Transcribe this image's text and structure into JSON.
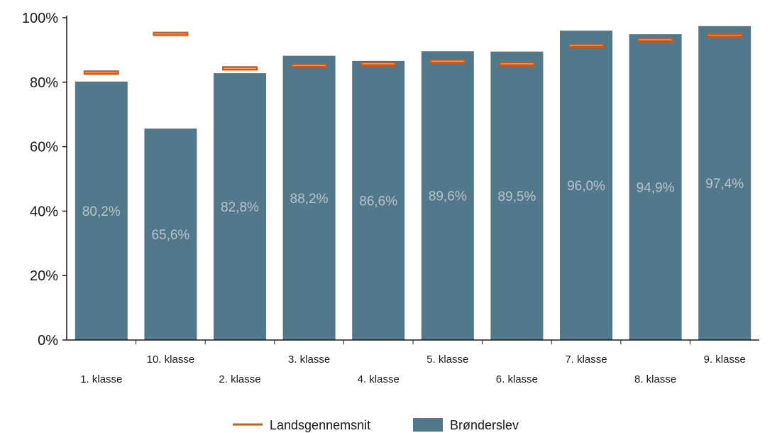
{
  "chart_data": {
    "type": "bar",
    "categories": [
      "1. klasse",
      "10. klasse",
      "2. klasse",
      "3. klasse",
      "4. klasse",
      "5. klasse",
      "6. klasse",
      "7. klasse",
      "8. klasse",
      "9. klasse"
    ],
    "series": [
      {
        "name": "Brønderslev",
        "type": "bar",
        "color": "#52788c",
        "values": [
          80.2,
          65.6,
          82.8,
          88.2,
          86.6,
          89.6,
          89.5,
          96.0,
          94.9,
          97.4
        ],
        "labels": [
          "80,2%",
          "65,6%",
          "82,8%",
          "88,2%",
          "86,6%",
          "89,6%",
          "89,5%",
          "96,0%",
          "94,9%",
          "97,4%"
        ]
      },
      {
        "name": "Landsgennemsnit",
        "type": "marker",
        "color": "#d9540f",
        "values": [
          83.0,
          95.0,
          84.3,
          85.2,
          85.7,
          86.5,
          85.7,
          91.4,
          93.2,
          94.6
        ]
      }
    ],
    "ylim": [
      0,
      100
    ],
    "yticks": [
      0,
      20,
      40,
      60,
      80,
      100
    ],
    "ytick_labels": [
      "0%",
      "20%",
      "40%",
      "60%",
      "80%",
      "100%"
    ],
    "grid": false,
    "legend_position": "bottom"
  }
}
